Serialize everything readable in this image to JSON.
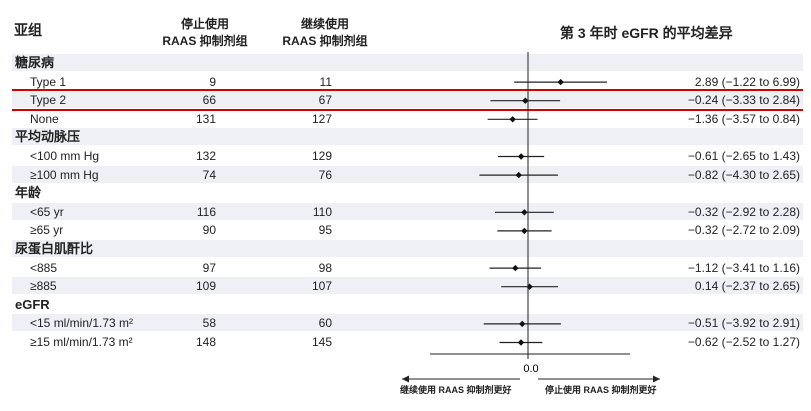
{
  "header": {
    "subgroup": "亚组",
    "stop_line1": "停止使用",
    "stop_line2": "RAAS 抑制剂组",
    "cont_line1": "继续使用",
    "cont_line2": "RAAS 抑制剂组",
    "effect_title": "第 3 年时 eGFR 的平均差异"
  },
  "rows": [
    {
      "kind": "group",
      "label": "糖尿病"
    },
    {
      "kind": "sub",
      "label": "Type 1",
      "stop": "9",
      "cont": "11",
      "est": 2.89,
      "lo": -1.22,
      "hi": 6.99,
      "ci": "2.89 (−1.22 to 6.99)"
    },
    {
      "kind": "sub",
      "label": "Type 2",
      "stop": "66",
      "cont": "67",
      "est": -0.24,
      "lo": -3.33,
      "hi": 2.84,
      "ci": "−0.24 (−3.33 to 2.84)"
    },
    {
      "kind": "sub",
      "label": "None",
      "stop": "131",
      "cont": "127",
      "est": -1.36,
      "lo": -3.57,
      "hi": 0.84,
      "ci": "−1.36 (−3.57 to 0.84)"
    },
    {
      "kind": "group",
      "label": "平均动脉压"
    },
    {
      "kind": "sub",
      "label": "<100 mm Hg",
      "stop": "132",
      "cont": "129",
      "est": -0.61,
      "lo": -2.65,
      "hi": 1.43,
      "ci": "−0.61 (−2.65 to 1.43)"
    },
    {
      "kind": "sub",
      "label": "≥100 mm Hg",
      "stop": "74",
      "cont": "76",
      "est": -0.82,
      "lo": -4.3,
      "hi": 2.65,
      "ci": "−0.82 (−4.30 to 2.65)"
    },
    {
      "kind": "group",
      "label": "年龄"
    },
    {
      "kind": "sub",
      "label": "<65 yr",
      "stop": "116",
      "cont": "110",
      "est": -0.32,
      "lo": -2.92,
      "hi": 2.28,
      "ci": "−0.32 (−2.92 to 2.28)"
    },
    {
      "kind": "sub",
      "label": "≥65 yr",
      "stop": "90",
      "cont": "95",
      "est": -0.32,
      "lo": -2.72,
      "hi": 2.09,
      "ci": "−0.32 (−2.72 to 2.09)"
    },
    {
      "kind": "group",
      "label": "尿蛋白肌酐比"
    },
    {
      "kind": "sub",
      "label": "<885",
      "stop": "97",
      "cont": "98",
      "est": -1.12,
      "lo": -3.41,
      "hi": 1.16,
      "ci": "−1.12 (−3.41 to 1.16)"
    },
    {
      "kind": "sub",
      "label": "≥885",
      "stop": "109",
      "cont": "107",
      "est": 0.14,
      "lo": -2.37,
      "hi": 2.65,
      "ci": "0.14 (−2.37 to 2.65)"
    },
    {
      "kind": "group",
      "label": "eGFR"
    },
    {
      "kind": "sub",
      "label": "<15 ml/min/1.73 m²",
      "stop": "58",
      "cont": "60",
      "est": -0.51,
      "lo": -3.92,
      "hi": 2.91,
      "ci": "−0.51 (−3.92 to 2.91)"
    },
    {
      "kind": "sub",
      "label": "≥15 ml/min/1.73 m²",
      "stop": "148",
      "cont": "145",
      "est": -0.62,
      "lo": -2.52,
      "hi": 1.27,
      "ci": "−0.62 (−2.52 to 1.27)"
    }
  ],
  "chart_data": {
    "type": "forest",
    "title": "第 3 年时 eGFR 的平均差异",
    "xlabel": "",
    "ylabel": "",
    "reference_value": 0.0,
    "axis_tick_labels": [
      "0.0"
    ],
    "xlim": [
      -5,
      5
    ],
    "grid": false,
    "left_arrow_label": "继续使用 RAAS 抑制剂更好",
    "right_arrow_label": "停止使用 RAAS 抑制剂更好",
    "highlighted_subgroup": "Type 2"
  },
  "colors": {
    "band": "#eef0f5",
    "highlight": "#d40000",
    "ink": "#222222"
  }
}
